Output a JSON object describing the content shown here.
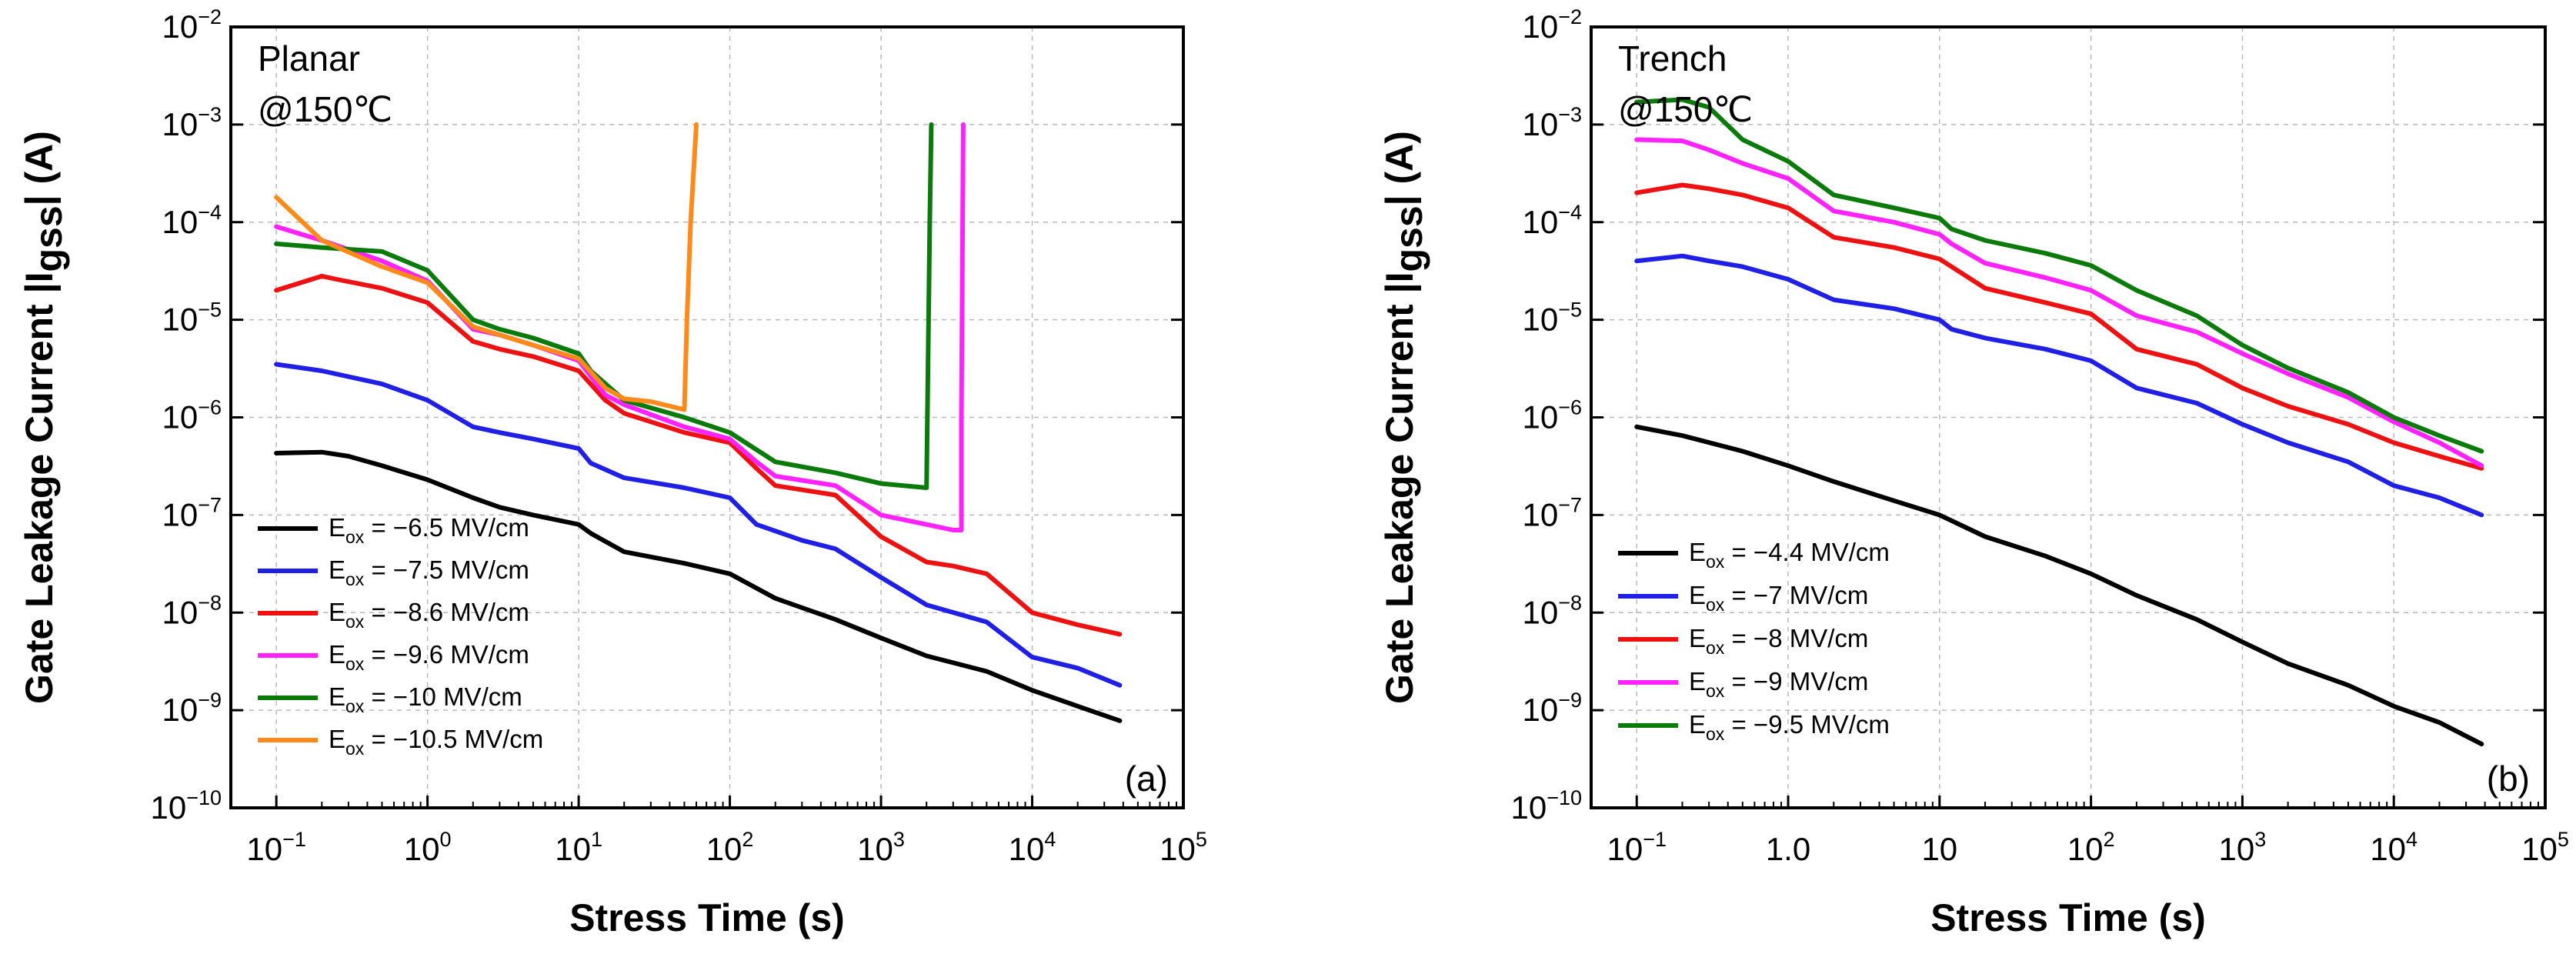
{
  "colors": {
    "black": "#000000",
    "blue": "#1f1fe6",
    "red": "#ee1111",
    "magenta": "#ff22ff",
    "green": "#0a7a0a",
    "orange": "#ff8a1a"
  },
  "chart_data": [
    {
      "type": "line",
      "panel_label": "(a)",
      "annotation_lines": [
        "Planar",
        "@150℃"
      ],
      "xlabel": "Stress Time (s)",
      "ylabel_prefix": "Gate Leakage Current |I",
      "ylabel_sub": "gss",
      "ylabel_suffix": "| (A)",
      "xscale": "log",
      "yscale": "log",
      "xlim": [
        0.05,
        100000
      ],
      "ylim": [
        1e-10,
        0.01
      ],
      "xtick_exponents": [
        -1,
        0,
        1,
        2,
        3,
        4,
        5
      ],
      "ytick_exponents": [
        -10,
        -9,
        -8,
        -7,
        -6,
        -5,
        -4,
        -3,
        -2
      ],
      "tick_base": "10",
      "tick_one": "1",
      "grid": true,
      "legend_position": "bottom-left",
      "series": [
        {
          "name_main": "E",
          "name_sub": "ox",
          "name_rest": " = −6.5 MV/cm",
          "color": "#000000",
          "x": [
            0.1,
            0.2,
            0.3,
            0.5,
            1,
            2,
            3,
            5,
            10,
            12,
            20,
            50,
            100,
            200,
            500,
            1000,
            2000,
            5000,
            10000,
            20000,
            38000
          ],
          "y": [
            4.3e-07,
            4.4e-07,
            4e-07,
            3.2e-07,
            2.3e-07,
            1.5e-07,
            1.2e-07,
            1e-07,
            8e-08,
            6.5e-08,
            4.2e-08,
            3.2e-08,
            2.5e-08,
            1.4e-08,
            8.5e-09,
            5.5e-09,
            3.6e-09,
            2.5e-09,
            1.6e-09,
            1.1e-09,
            7.8e-10
          ]
        },
        {
          "name_main": "E",
          "name_sub": "ox",
          "name_rest": " = −7.5 MV/cm",
          "color": "#1f1fe6",
          "x": [
            0.1,
            0.2,
            0.5,
            1,
            2,
            3,
            5,
            10,
            12,
            20,
            50,
            100,
            150,
            300,
            500,
            1000,
            2000,
            5000,
            10000,
            20000,
            38000
          ],
          "y": [
            3.5e-06,
            3e-06,
            2.2e-06,
            1.5e-06,
            8e-07,
            7e-07,
            6e-07,
            4.8e-07,
            3.4e-07,
            2.4e-07,
            1.9e-07,
            1.5e-07,
            8e-08,
            5.5e-08,
            4.5e-08,
            2.3e-08,
            1.2e-08,
            8e-09,
            3.5e-09,
            2.7e-09,
            1.8e-09
          ]
        },
        {
          "name_main": "E",
          "name_sub": "ox",
          "name_rest": " = −8.6 MV/cm",
          "color": "#ee1111",
          "x": [
            0.1,
            0.2,
            0.25,
            0.5,
            1,
            2,
            3,
            5,
            10,
            15,
            20,
            50,
            100,
            150,
            200,
            500,
            1000,
            2000,
            3000,
            5000,
            10000,
            20000,
            38000
          ],
          "y": [
            2e-05,
            2.8e-05,
            2.6e-05,
            2.1e-05,
            1.5e-05,
            6e-06,
            5e-06,
            4.2e-06,
            3e-06,
            1.5e-06,
            1.1e-06,
            7e-07,
            5.5e-07,
            3e-07,
            2e-07,
            1.6e-07,
            6e-08,
            3.3e-08,
            3e-08,
            2.5e-08,
            1e-08,
            7.5e-09,
            6e-09
          ]
        },
        {
          "name_main": "E",
          "name_sub": "ox",
          "name_rest": " = −9.6 MV/cm",
          "color": "#ff22ff",
          "x": [
            0.1,
            0.2,
            0.5,
            1,
            2,
            3,
            5,
            10,
            15,
            20,
            50,
            100,
            150,
            200,
            500,
            1000,
            2000,
            3000,
            3400,
            3400,
            3500
          ],
          "y": [
            9e-05,
            6.5e-05,
            4e-05,
            2.5e-05,
            8e-06,
            7e-06,
            5.5e-06,
            3.8e-06,
            1.7e-06,
            1.35e-06,
            8e-07,
            6e-07,
            3.5e-07,
            2.5e-07,
            2e-07,
            1e-07,
            8e-08,
            7e-08,
            7e-08,
            1e-06,
            0.001
          ]
        },
        {
          "name_main": "E",
          "name_sub": "ox",
          "name_rest": " = −10 MV/cm",
          "color": "#0a7a0a",
          "x": [
            0.1,
            0.2,
            0.5,
            1,
            2,
            3,
            5,
            10,
            12,
            20,
            50,
            100,
            200,
            500,
            1000,
            2000,
            2100,
            2150
          ],
          "y": [
            6e-05,
            5.5e-05,
            5e-05,
            3.2e-05,
            1e-05,
            8e-06,
            6.5e-06,
            4.5e-06,
            3e-06,
            1.5e-06,
            1e-06,
            7e-07,
            3.5e-07,
            2.7e-07,
            2.1e-07,
            1.9e-07,
            0.0001,
            0.001
          ]
        },
        {
          "name_main": "E",
          "name_sub": "ox",
          "name_rest": " = −10.5 MV/cm",
          "color": "#ff8a1a",
          "x": [
            0.1,
            0.2,
            0.5,
            1,
            2,
            3,
            5,
            10,
            15,
            20,
            30,
            50,
            52,
            55,
            60
          ],
          "y": [
            0.00018,
            6.5e-05,
            3.5e-05,
            2.4e-05,
            8.5e-06,
            7e-06,
            5.5e-06,
            4e-06,
            2e-06,
            1.55e-06,
            1.45e-06,
            1.2e-06,
            1e-05,
            0.0001,
            0.001
          ]
        }
      ]
    },
    {
      "type": "line",
      "panel_label": "(b)",
      "annotation_lines": [
        "Trench",
        "@150℃"
      ],
      "xlabel": "Stress Time (s)",
      "ylabel_prefix": "Gate Leakage Current |I",
      "ylabel_sub": "gss",
      "ylabel_suffix": "| (A)",
      "xscale": "log",
      "yscale": "log",
      "xlim": [
        0.05,
        100000
      ],
      "ylim": [
        1e-10,
        0.01
      ],
      "xtick_exponents": [
        -1,
        0,
        1,
        2,
        3,
        4,
        5
      ],
      "ytick_exponents": [
        -10,
        -9,
        -8,
        -7,
        -6,
        -5,
        -4,
        -3,
        -2
      ],
      "tick_base": "10",
      "tick_one": "1",
      "grid": true,
      "legend_position": "bottom-left",
      "series": [
        {
          "name_main": "E",
          "name_sub": "ox",
          "name_rest": " = −4.4 MV/cm",
          "color": "#000000",
          "x": [
            0.1,
            0.2,
            0.5,
            1,
            2,
            5,
            10,
            20,
            50,
            100,
            200,
            500,
            1000,
            2000,
            5000,
            10000,
            20000,
            38000
          ],
          "y": [
            8e-07,
            6.5e-07,
            4.5e-07,
            3.2e-07,
            2.2e-07,
            1.4e-07,
            1e-07,
            6e-08,
            3.8e-08,
            2.5e-08,
            1.5e-08,
            8.5e-09,
            5e-09,
            3e-09,
            1.8e-09,
            1.1e-09,
            7.5e-10,
            4.5e-10
          ]
        },
        {
          "name_main": "E",
          "name_sub": "ox",
          "name_rest": " = −7 MV/cm",
          "color": "#1f1fe6",
          "x": [
            0.1,
            0.2,
            0.3,
            0.5,
            1,
            2,
            5,
            10,
            12,
            20,
            50,
            100,
            200,
            500,
            1000,
            2000,
            5000,
            10000,
            20000,
            38000
          ],
          "y": [
            4e-05,
            4.5e-05,
            4e-05,
            3.5e-05,
            2.6e-05,
            1.6e-05,
            1.3e-05,
            1e-05,
            8e-06,
            6.5e-06,
            5e-06,
            3.8e-06,
            2e-06,
            1.4e-06,
            8.5e-07,
            5.5e-07,
            3.5e-07,
            2e-07,
            1.5e-07,
            1e-07
          ]
        },
        {
          "name_main": "E",
          "name_sub": "ox",
          "name_rest": " = −8 MV/cm",
          "color": "#ee1111",
          "x": [
            0.1,
            0.2,
            0.3,
            0.5,
            1,
            2,
            5,
            10,
            12,
            20,
            50,
            100,
            200,
            500,
            1000,
            2000,
            5000,
            10000,
            20000,
            38000
          ],
          "y": [
            0.0002,
            0.00024,
            0.00022,
            0.00019,
            0.00014,
            7e-05,
            5.5e-05,
            4.2e-05,
            3.5e-05,
            2.1e-05,
            1.5e-05,
            1.15e-05,
            5e-06,
            3.5e-06,
            2e-06,
            1.3e-06,
            8.5e-07,
            5.5e-07,
            4e-07,
            3e-07
          ]
        },
        {
          "name_main": "E",
          "name_sub": "ox",
          "name_rest": " = −9 MV/cm",
          "color": "#ff22ff",
          "x": [
            0.1,
            0.2,
            0.3,
            0.5,
            1,
            2,
            5,
            10,
            12,
            20,
            50,
            100,
            200,
            500,
            1000,
            2000,
            5000,
            10000,
            20000,
            38000
          ],
          "y": [
            0.0007,
            0.00068,
            0.00055,
            0.0004,
            0.00028,
            0.00013,
            0.0001,
            7.5e-05,
            6e-05,
            3.8e-05,
            2.7e-05,
            2e-05,
            1.1e-05,
            7.5e-06,
            4.5e-06,
            2.8e-06,
            1.6e-06,
            9e-07,
            5.5e-07,
            3.2e-07
          ]
        },
        {
          "name_main": "E",
          "name_sub": "ox",
          "name_rest": " = −9.5 MV/cm",
          "color": "#0a7a0a",
          "x": [
            0.1,
            0.2,
            0.3,
            0.5,
            1,
            2,
            5,
            10,
            12,
            20,
            50,
            100,
            200,
            500,
            1000,
            2000,
            5000,
            10000,
            20000,
            38000
          ],
          "y": [
            0.0017,
            0.0018,
            0.0015,
            0.0007,
            0.00042,
            0.00019,
            0.00014,
            0.00011,
            8.5e-05,
            6.5e-05,
            4.8e-05,
            3.6e-05,
            2e-05,
            1.1e-05,
            5.5e-06,
            3.2e-06,
            1.8e-06,
            1e-06,
            6.5e-07,
            4.5e-07
          ]
        }
      ]
    }
  ]
}
